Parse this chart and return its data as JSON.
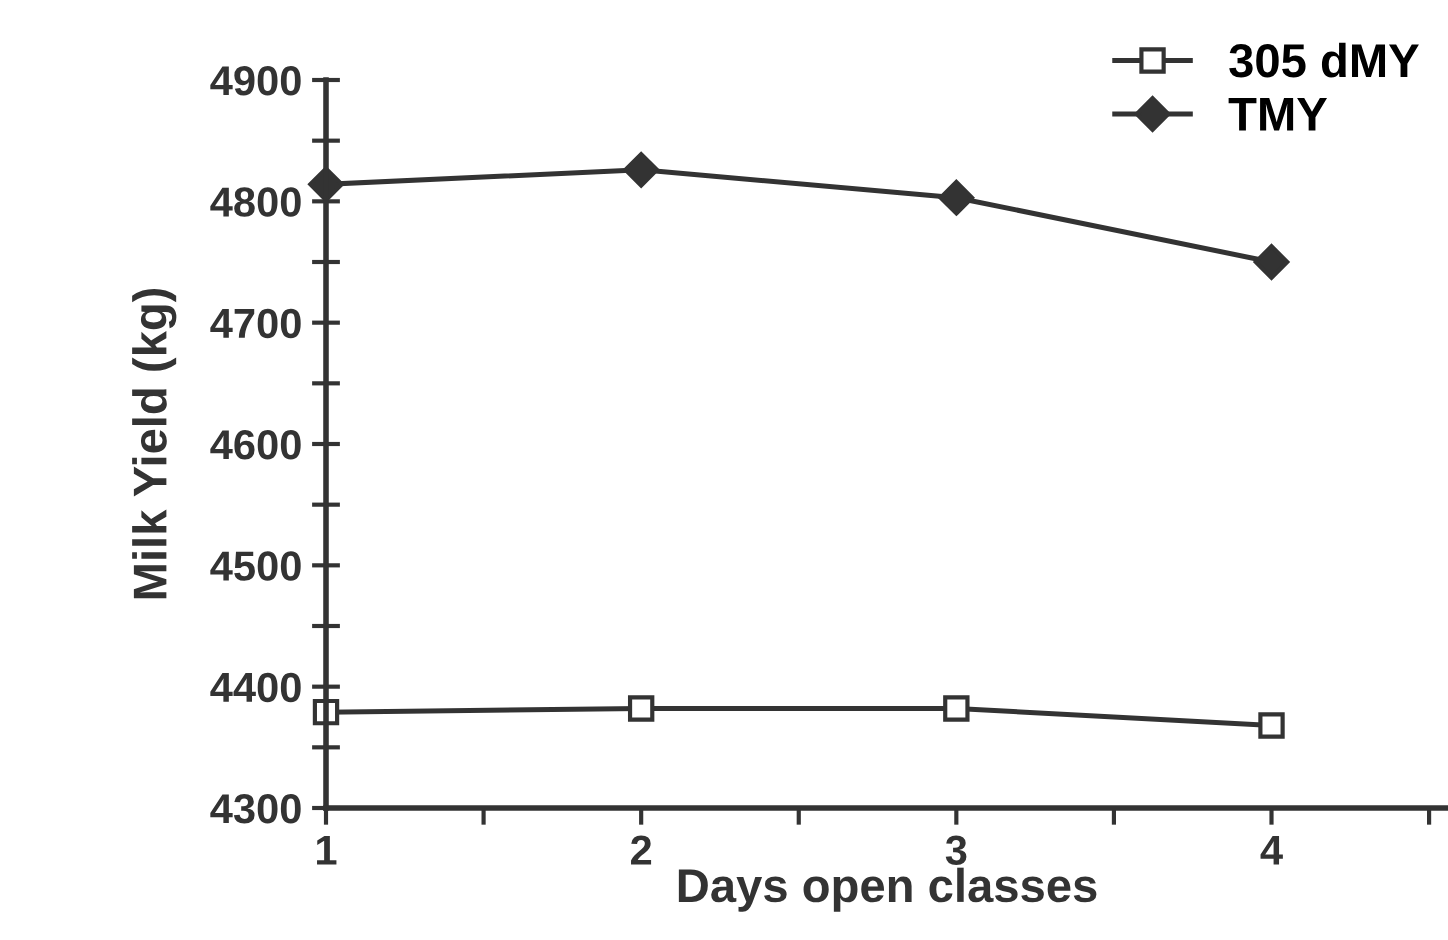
{
  "chart_data": {
    "type": "line",
    "xlabel": "Days open classes",
    "ylabel": "Milk Yield (kg)",
    "x": [
      1,
      2,
      3,
      4
    ],
    "series": [
      {
        "name": "305 dMY",
        "color": "#333333",
        "marker": "square",
        "values": [
          4379,
          4382,
          4382,
          4368
        ]
      },
      {
        "name": "TMY",
        "color": "#333333",
        "marker": "diamond",
        "values": [
          4814,
          4826,
          4803,
          4750
        ]
      }
    ],
    "xlim": [
      1,
      4.56
    ],
    "xticks": [
      1,
      {
        "value": 1.5,
        "label": null
      },
      2,
      {
        "value": 2.5,
        "label": null
      },
      3,
      {
        "value": 3.5,
        "label": null
      },
      4,
      {
        "value": 4.5,
        "label": null
      }
    ],
    "ylim": [
      4300,
      4900
    ],
    "yticks": [
      4300,
      {
        "value": 4350,
        "label": null
      },
      4400,
      {
        "value": 4450,
        "label": null
      },
      4500,
      {
        "value": 4550,
        "label": null
      },
      4600,
      {
        "value": 4650,
        "label": null
      },
      4700,
      {
        "value": 4750,
        "label": null
      },
      4800,
      {
        "value": 4850,
        "label": null
      },
      4900
    ],
    "grid": false,
    "legend": "top right",
    "line_style": "solid"
  }
}
